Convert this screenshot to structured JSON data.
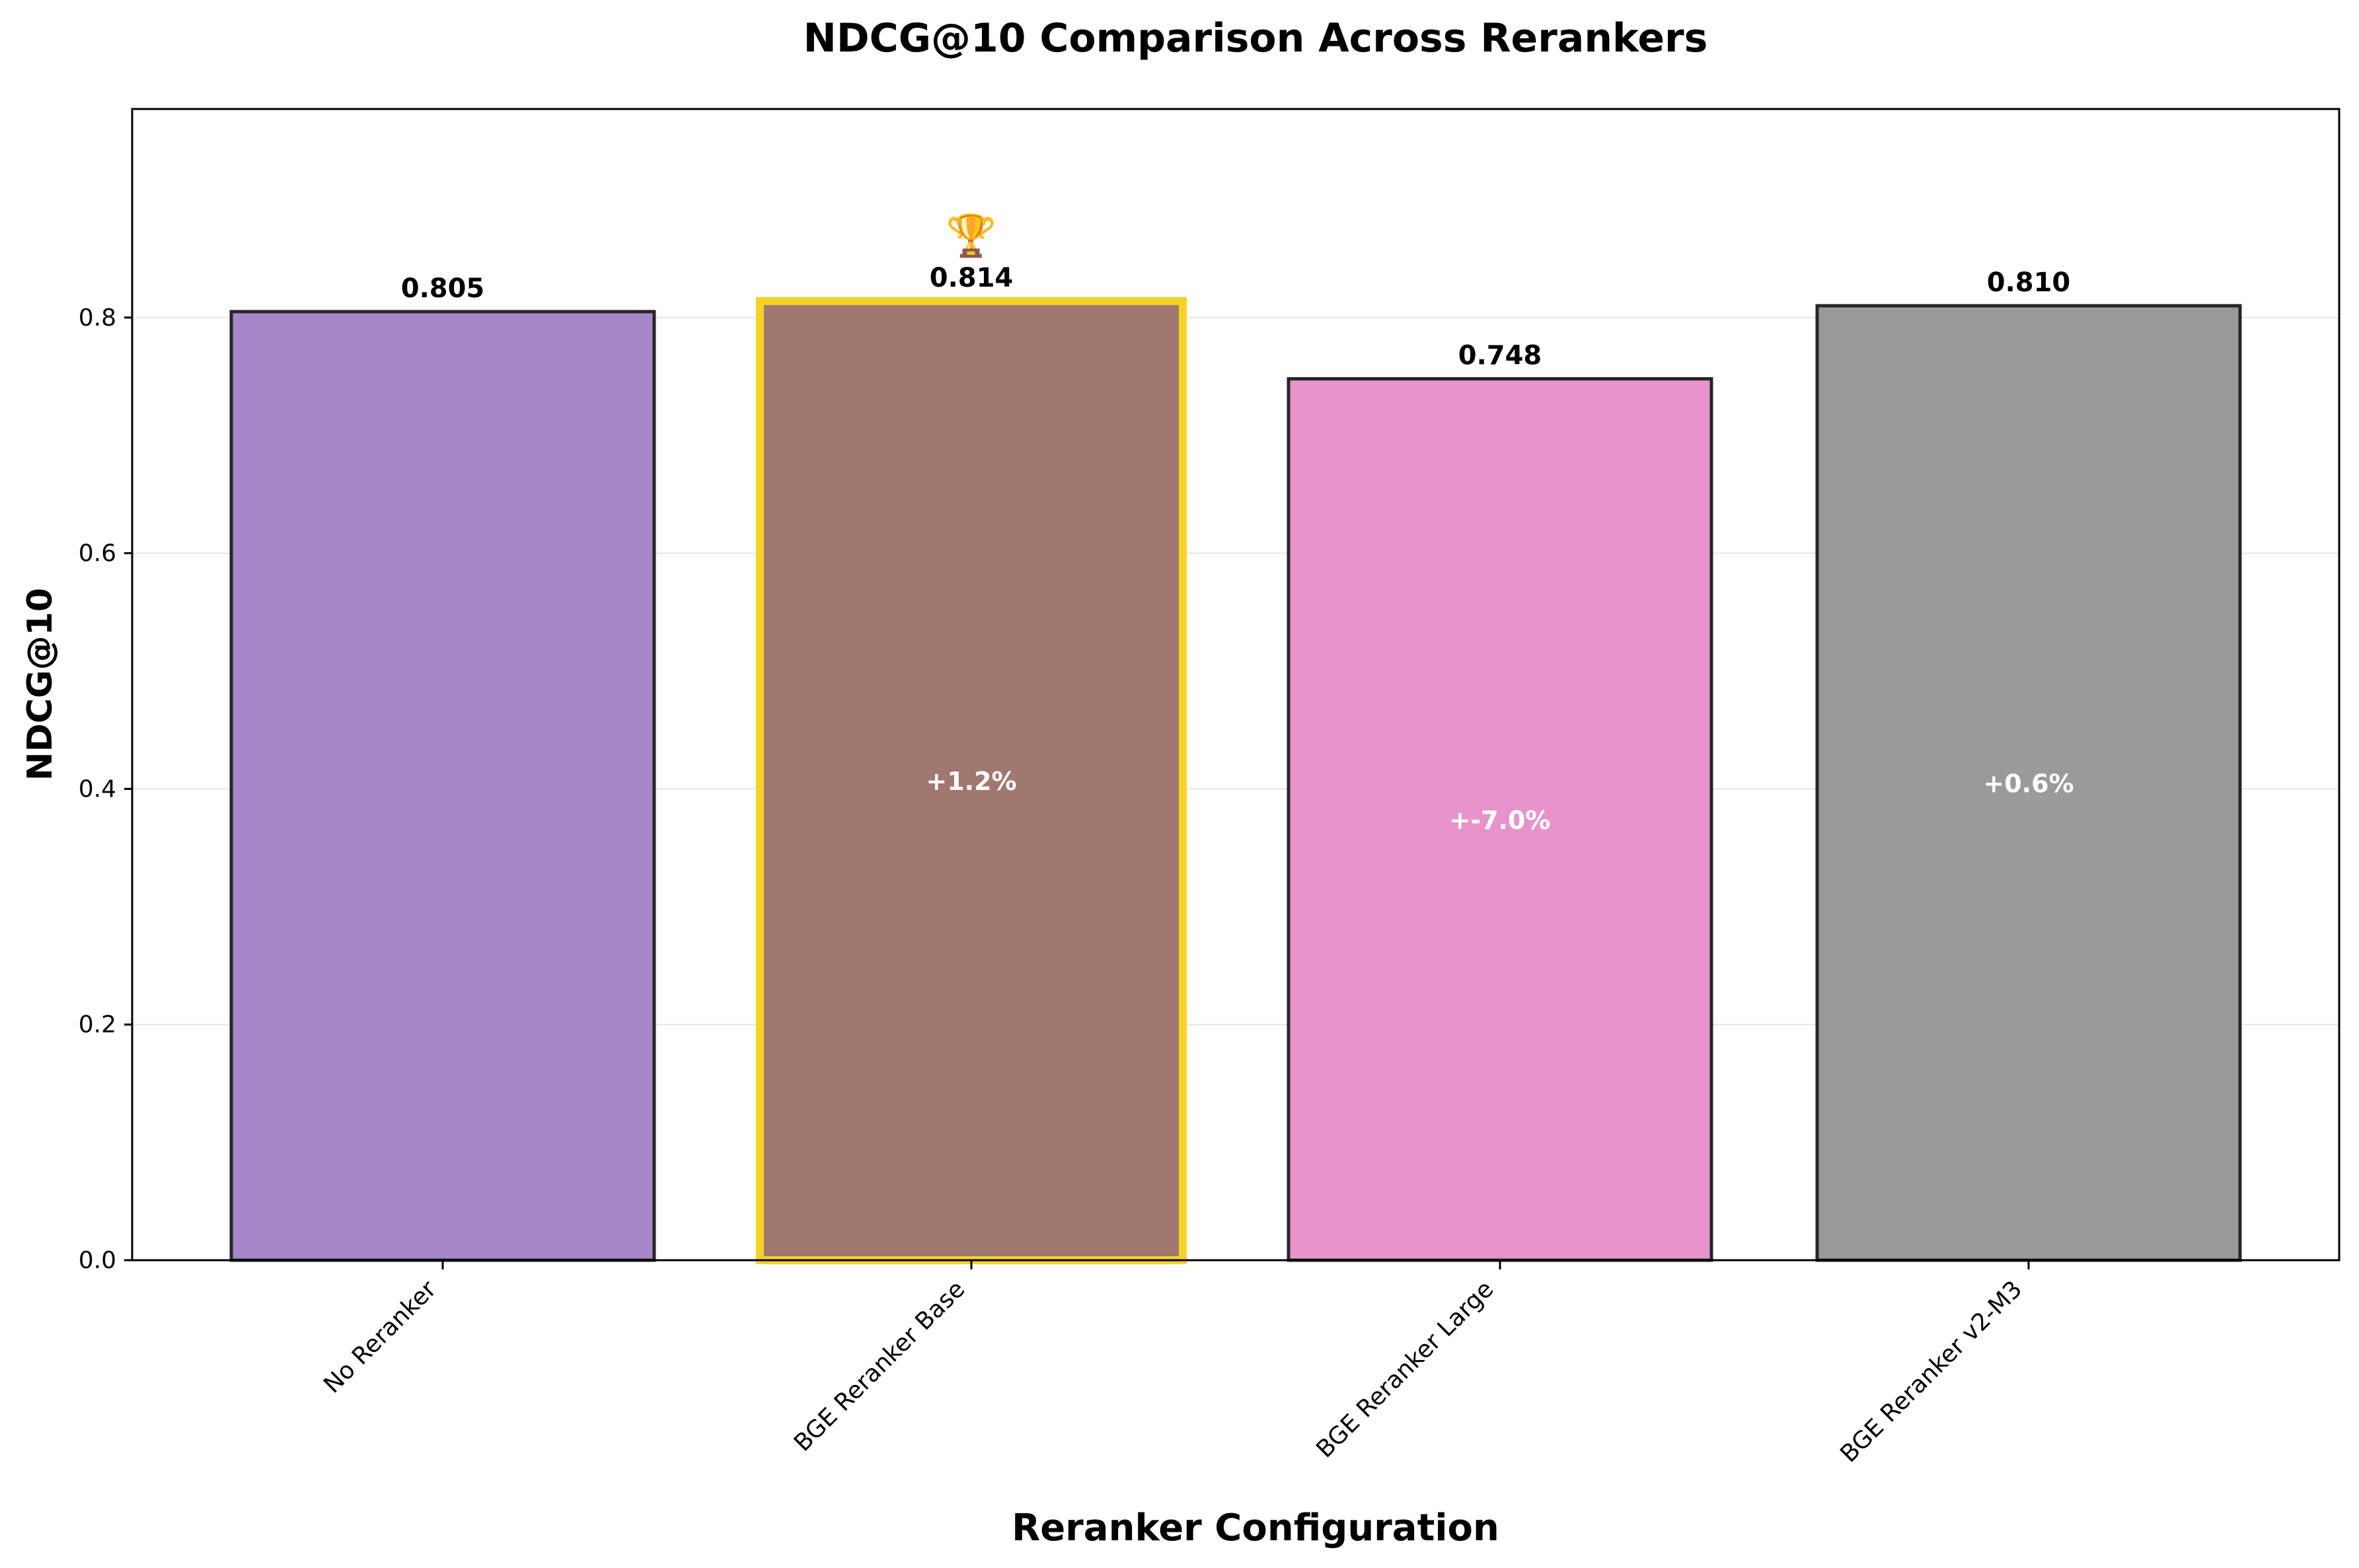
{
  "chart_data": {
    "type": "bar",
    "title": "NDCG@10 Comparison Across Rerankers",
    "xlabel": "Reranker Configuration",
    "ylabel": "NDCG@10",
    "categories": [
      "No Reranker",
      "BGE Reranker Base",
      "BGE Reranker Large",
      "BGE Reranker v2-M3"
    ],
    "values": [
      0.805,
      0.814,
      0.748,
      0.81
    ],
    "value_labels": [
      "0.805",
      "0.814",
      "0.748",
      "0.810"
    ],
    "delta_labels": [
      "",
      "+1.2%",
      "+-7.0%",
      "+0.6%"
    ],
    "ylim": [
      0,
      0.977
    ],
    "yticks": [
      0.0,
      0.2,
      0.4,
      0.6,
      0.8
    ],
    "ytick_labels": [
      "0.0",
      "0.2",
      "0.4",
      "0.6",
      "0.8"
    ],
    "grid": "y",
    "highlight_index": 1,
    "highlight_marker": "🏆",
    "colors": {
      "bars": [
        "#a786c8",
        "#a1786f",
        "#e794cc",
        "#9a9a9a"
      ],
      "edge": "#262626",
      "highlight_edge": "#f5d327",
      "grid": "#e5e5e5",
      "axis": "#000000",
      "delta_text": "#ffffff"
    }
  }
}
